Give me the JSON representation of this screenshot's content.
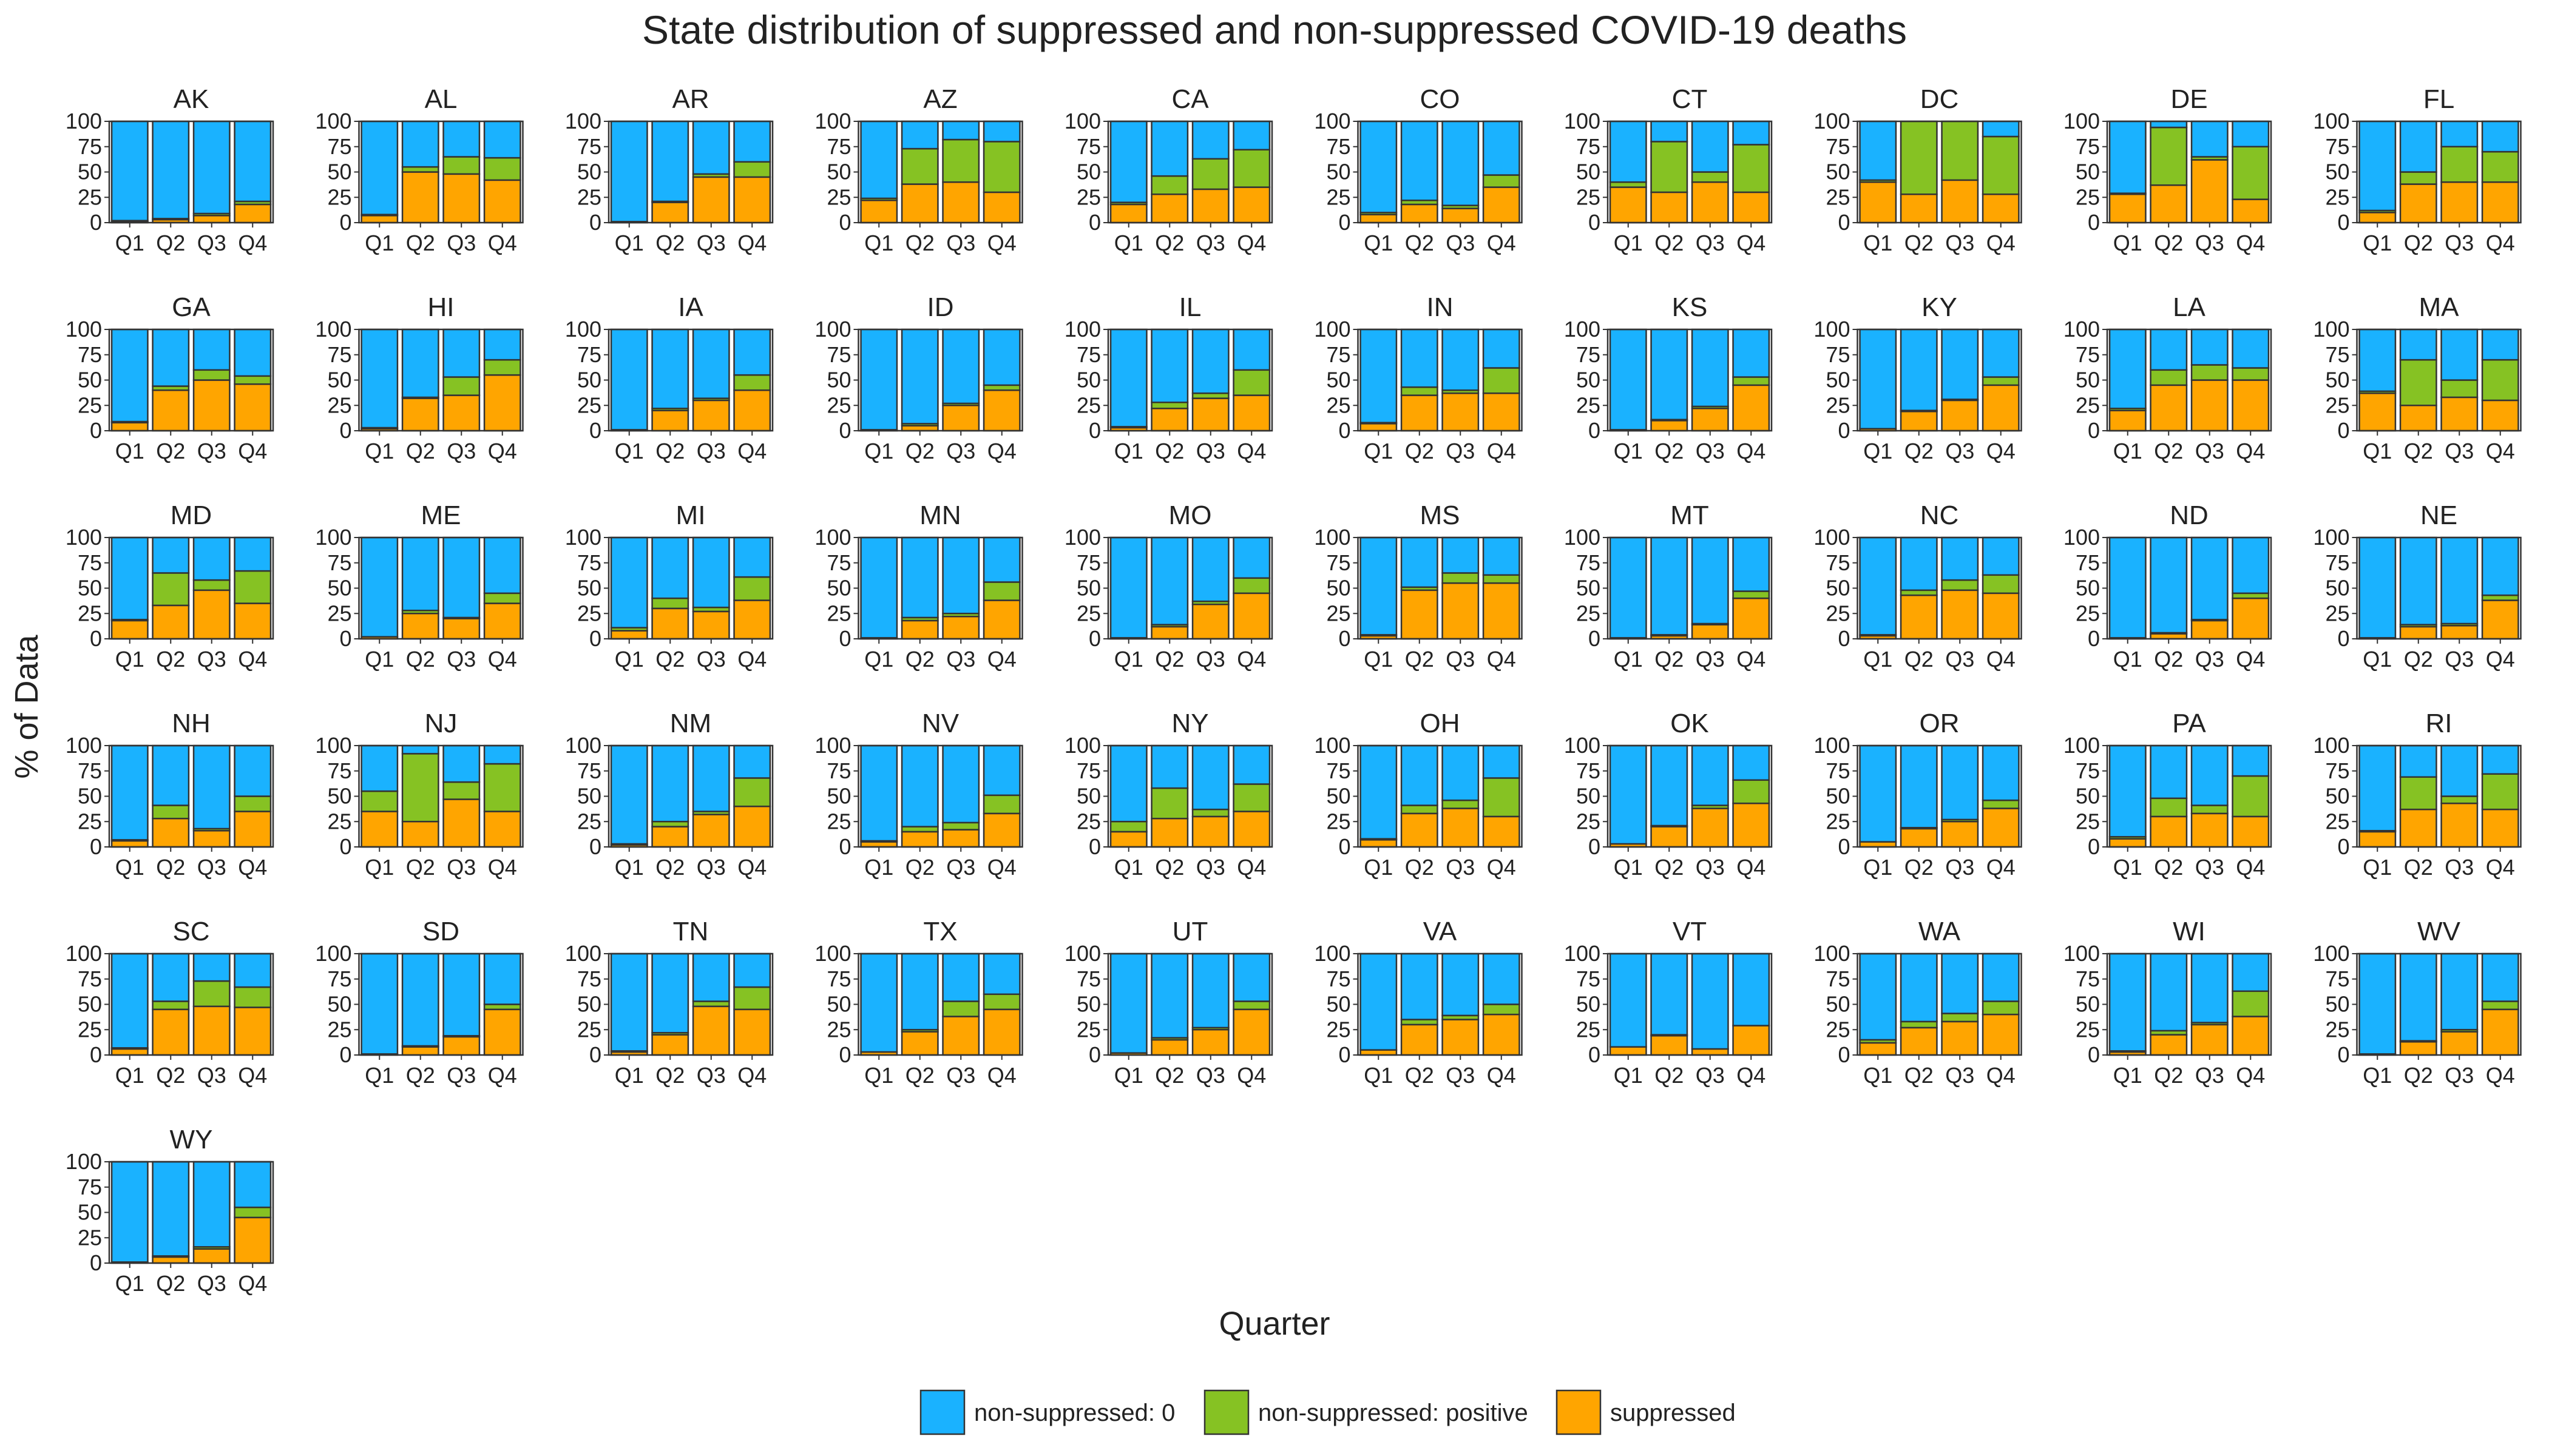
{
  "chart_data": {
    "type": "bar",
    "stacked": true,
    "title": "State distribution of suppressed and non-suppressed COVID-19 deaths",
    "xlabel": "Quarter",
    "ylabel": "% of Data",
    "ylim": [
      0,
      100
    ],
    "yticks": [
      0,
      25,
      50,
      75,
      100
    ],
    "categories": [
      "Q1",
      "Q2",
      "Q3",
      "Q4"
    ],
    "grid": false,
    "legend_position": "bottom",
    "series": [
      {
        "key": "np0",
        "name": "non-suppressed: 0",
        "color": "#1AB2FF"
      },
      {
        "key": "npp",
        "name": "non-suppressed: positive",
        "color": "#86C223"
      },
      {
        "key": "sup",
        "name": "suppressed",
        "color": "#FFA500"
      }
    ],
    "value_order": "each quarter lists [suppressed, non-suppressed: positive] percentages; non-suppressed: 0 fills the rest to 100",
    "panels": [
      {
        "state": "AK",
        "values": [
          [
            1,
            1
          ],
          [
            3,
            1
          ],
          [
            7,
            2
          ],
          [
            18,
            3
          ]
        ]
      },
      {
        "state": "AL",
        "values": [
          [
            7,
            1
          ],
          [
            50,
            5
          ],
          [
            48,
            17
          ],
          [
            42,
            22
          ]
        ]
      },
      {
        "state": "AR",
        "values": [
          [
            1,
            0
          ],
          [
            20,
            1
          ],
          [
            45,
            3
          ],
          [
            45,
            15
          ]
        ]
      },
      {
        "state": "AZ",
        "values": [
          [
            22,
            2
          ],
          [
            38,
            35
          ],
          [
            40,
            42
          ],
          [
            30,
            50
          ]
        ]
      },
      {
        "state": "CA",
        "values": [
          [
            18,
            2
          ],
          [
            28,
            18
          ],
          [
            33,
            30
          ],
          [
            35,
            37
          ]
        ]
      },
      {
        "state": "CO",
        "values": [
          [
            8,
            2
          ],
          [
            18,
            4
          ],
          [
            14,
            3
          ],
          [
            35,
            12
          ]
        ]
      },
      {
        "state": "CT",
        "values": [
          [
            35,
            5
          ],
          [
            30,
            50
          ],
          [
            40,
            10
          ],
          [
            30,
            47
          ]
        ]
      },
      {
        "state": "DC",
        "values": [
          [
            40,
            2
          ],
          [
            28,
            72
          ],
          [
            42,
            58
          ],
          [
            28,
            57
          ]
        ]
      },
      {
        "state": "DE",
        "values": [
          [
            28,
            1
          ],
          [
            37,
            57
          ],
          [
            62,
            3
          ],
          [
            23,
            52
          ]
        ]
      },
      {
        "state": "FL",
        "values": [
          [
            10,
            2
          ],
          [
            38,
            12
          ],
          [
            40,
            35
          ],
          [
            40,
            30
          ]
        ]
      },
      {
        "state": "GA",
        "values": [
          [
            8,
            1
          ],
          [
            40,
            4
          ],
          [
            50,
            10
          ],
          [
            46,
            8
          ]
        ]
      },
      {
        "state": "HI",
        "values": [
          [
            2,
            1
          ],
          [
            32,
            1
          ],
          [
            35,
            18
          ],
          [
            55,
            15
          ]
        ]
      },
      {
        "state": "IA",
        "values": [
          [
            1,
            0
          ],
          [
            20,
            2
          ],
          [
            30,
            2
          ],
          [
            40,
            15
          ]
        ]
      },
      {
        "state": "ID",
        "values": [
          [
            1,
            0
          ],
          [
            5,
            2
          ],
          [
            25,
            2
          ],
          [
            40,
            5
          ]
        ]
      },
      {
        "state": "IL",
        "values": [
          [
            3,
            1
          ],
          [
            22,
            6
          ],
          [
            32,
            5
          ],
          [
            35,
            25
          ]
        ]
      },
      {
        "state": "IN",
        "values": [
          [
            7,
            1
          ],
          [
            35,
            8
          ],
          [
            37,
            3
          ],
          [
            37,
            25
          ]
        ]
      },
      {
        "state": "KS",
        "values": [
          [
            1,
            0
          ],
          [
            10,
            1
          ],
          [
            22,
            2
          ],
          [
            45,
            8
          ]
        ]
      },
      {
        "state": "KY",
        "values": [
          [
            2,
            0
          ],
          [
            19,
            1
          ],
          [
            30,
            1
          ],
          [
            45,
            8
          ]
        ]
      },
      {
        "state": "LA",
        "values": [
          [
            20,
            2
          ],
          [
            45,
            15
          ],
          [
            50,
            15
          ],
          [
            50,
            12
          ]
        ]
      },
      {
        "state": "MA",
        "values": [
          [
            37,
            2
          ],
          [
            25,
            45
          ],
          [
            33,
            17
          ],
          [
            30,
            40
          ]
        ]
      },
      {
        "state": "MD",
        "values": [
          [
            18,
            1
          ],
          [
            33,
            32
          ],
          [
            48,
            10
          ],
          [
            35,
            32
          ]
        ]
      },
      {
        "state": "ME",
        "values": [
          [
            2,
            0
          ],
          [
            25,
            3
          ],
          [
            20,
            1
          ],
          [
            35,
            10
          ]
        ]
      },
      {
        "state": "MI",
        "values": [
          [
            8,
            3
          ],
          [
            30,
            10
          ],
          [
            27,
            4
          ],
          [
            38,
            23
          ]
        ]
      },
      {
        "state": "MN",
        "values": [
          [
            1,
            0
          ],
          [
            18,
            3
          ],
          [
            22,
            3
          ],
          [
            38,
            18
          ]
        ]
      },
      {
        "state": "MO",
        "values": [
          [
            1,
            0
          ],
          [
            12,
            2
          ],
          [
            34,
            3
          ],
          [
            45,
            15
          ]
        ]
      },
      {
        "state": "MS",
        "values": [
          [
            3,
            1
          ],
          [
            48,
            3
          ],
          [
            55,
            10
          ],
          [
            55,
            8
          ]
        ]
      },
      {
        "state": "MT",
        "values": [
          [
            1,
            0
          ],
          [
            3,
            1
          ],
          [
            14,
            1
          ],
          [
            40,
            7
          ]
        ]
      },
      {
        "state": "NC",
        "values": [
          [
            3,
            1
          ],
          [
            43,
            5
          ],
          [
            48,
            10
          ],
          [
            45,
            18
          ]
        ]
      },
      {
        "state": "ND",
        "values": [
          [
            1,
            0
          ],
          [
            5,
            1
          ],
          [
            18,
            1
          ],
          [
            40,
            5
          ]
        ]
      },
      {
        "state": "NE",
        "values": [
          [
            1,
            0
          ],
          [
            12,
            2
          ],
          [
            13,
            2
          ],
          [
            38,
            5
          ]
        ]
      },
      {
        "state": "NH",
        "values": [
          [
            6,
            1
          ],
          [
            28,
            13
          ],
          [
            16,
            2
          ],
          [
            35,
            15
          ]
        ]
      },
      {
        "state": "NJ",
        "values": [
          [
            35,
            20
          ],
          [
            25,
            67
          ],
          [
            47,
            17
          ],
          [
            35,
            47
          ]
        ]
      },
      {
        "state": "NM",
        "values": [
          [
            2,
            1
          ],
          [
            20,
            5
          ],
          [
            32,
            3
          ],
          [
            40,
            28
          ]
        ]
      },
      {
        "state": "NV",
        "values": [
          [
            5,
            1
          ],
          [
            15,
            5
          ],
          [
            17,
            7
          ],
          [
            33,
            18
          ]
        ]
      },
      {
        "state": "NY",
        "values": [
          [
            15,
            10
          ],
          [
            28,
            30
          ],
          [
            30,
            7
          ],
          [
            35,
            27
          ]
        ]
      },
      {
        "state": "OH",
        "values": [
          [
            7,
            1
          ],
          [
            33,
            8
          ],
          [
            38,
            8
          ],
          [
            30,
            38
          ]
        ]
      },
      {
        "state": "OK",
        "values": [
          [
            3,
            0
          ],
          [
            20,
            1
          ],
          [
            38,
            3
          ],
          [
            43,
            23
          ]
        ]
      },
      {
        "state": "OR",
        "values": [
          [
            5,
            0
          ],
          [
            18,
            1
          ],
          [
            25,
            2
          ],
          [
            38,
            8
          ]
        ]
      },
      {
        "state": "PA",
        "values": [
          [
            8,
            2
          ],
          [
            30,
            18
          ],
          [
            33,
            8
          ],
          [
            30,
            40
          ]
        ]
      },
      {
        "state": "RI",
        "values": [
          [
            15,
            1
          ],
          [
            37,
            32
          ],
          [
            43,
            7
          ],
          [
            37,
            35
          ]
        ]
      },
      {
        "state": "SC",
        "values": [
          [
            6,
            1
          ],
          [
            45,
            8
          ],
          [
            48,
            25
          ],
          [
            47,
            20
          ]
        ]
      },
      {
        "state": "SD",
        "values": [
          [
            1,
            0
          ],
          [
            8,
            1
          ],
          [
            18,
            1
          ],
          [
            45,
            5
          ]
        ]
      },
      {
        "state": "TN",
        "values": [
          [
            3,
            1
          ],
          [
            20,
            2
          ],
          [
            48,
            5
          ],
          [
            45,
            22
          ]
        ]
      },
      {
        "state": "TX",
        "values": [
          [
            3,
            0
          ],
          [
            23,
            2
          ],
          [
            38,
            15
          ],
          [
            45,
            15
          ]
        ]
      },
      {
        "state": "UT",
        "values": [
          [
            2,
            0
          ],
          [
            15,
            2
          ],
          [
            25,
            2
          ],
          [
            45,
            8
          ]
        ]
      },
      {
        "state": "VA",
        "values": [
          [
            5,
            0
          ],
          [
            30,
            5
          ],
          [
            35,
            4
          ],
          [
            40,
            10
          ]
        ]
      },
      {
        "state": "VT",
        "values": [
          [
            8,
            0
          ],
          [
            19,
            1
          ],
          [
            6,
            0
          ],
          [
            29,
            0
          ]
        ]
      },
      {
        "state": "WA",
        "values": [
          [
            12,
            3
          ],
          [
            27,
            6
          ],
          [
            33,
            8
          ],
          [
            40,
            13
          ]
        ]
      },
      {
        "state": "WI",
        "values": [
          [
            3,
            1
          ],
          [
            20,
            4
          ],
          [
            30,
            2
          ],
          [
            38,
            25
          ]
        ]
      },
      {
        "state": "WV",
        "values": [
          [
            1,
            0
          ],
          [
            13,
            1
          ],
          [
            23,
            2
          ],
          [
            45,
            8
          ]
        ]
      },
      {
        "state": "WY",
        "values": [
          [
            1,
            0
          ],
          [
            6,
            1
          ],
          [
            14,
            2
          ],
          [
            45,
            10
          ]
        ]
      }
    ]
  }
}
